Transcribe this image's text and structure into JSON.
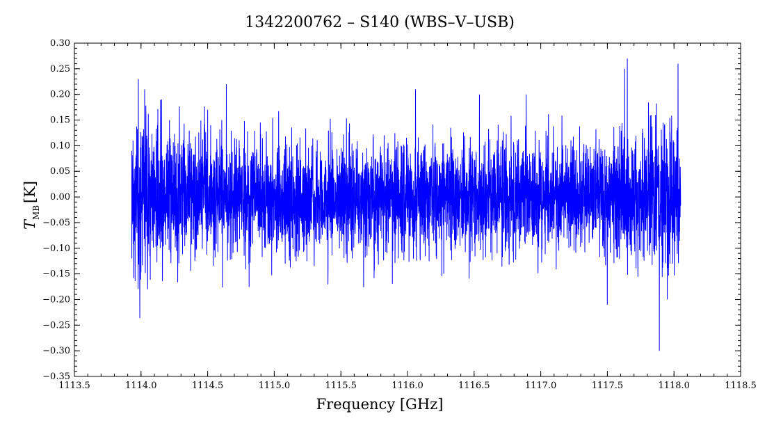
{
  "chart_data": {
    "type": "line",
    "title": "1342200762 – S140 (WBS–V–USB)",
    "xlabel": "Frequency [GHz]",
    "ylabel_main": "T",
    "ylabel_sub": "MB",
    "ylabel_unit": "[K]",
    "xlim": [
      1113.5,
      1118.5
    ],
    "ylim": [
      -0.35,
      0.3
    ],
    "x_ticks": [
      1113.5,
      1114.0,
      1114.5,
      1115.0,
      1115.5,
      1116.0,
      1116.5,
      1117.0,
      1117.5,
      1118.0,
      1118.5
    ],
    "x_tick_labels": [
      "1113.5",
      "1114.0",
      "1114.5",
      "1115.0",
      "1115.5",
      "1116.0",
      "1116.5",
      "1117.0",
      "1117.5",
      "1118.0",
      "1118.5"
    ],
    "y_ticks": [
      0.3,
      0.25,
      0.2,
      0.15,
      0.1,
      0.05,
      0.0,
      -0.05,
      -0.1,
      -0.15,
      -0.2,
      -0.25,
      -0.3,
      -0.35
    ],
    "y_tick_labels": [
      "0.30",
      "0.25",
      "0.20",
      "0.15",
      "0.10",
      "0.05",
      "0.00",
      "−0.05",
      "−0.10",
      "−0.15",
      "−0.20",
      "−0.25",
      "−0.30",
      "−0.35"
    ],
    "grid": false,
    "legend": "none",
    "series": [
      {
        "color": "#0000ff",
        "x_start": 1113.93,
        "x_end": 1118.05,
        "noise_rms_k": 0.055,
        "points": [
          [
            1113.93,
            -0.21
          ],
          [
            1113.93,
            0.09
          ],
          [
            1113.98,
            0.23
          ],
          [
            1113.99,
            -0.17
          ],
          [
            1114.05,
            -0.18
          ],
          [
            1114.5,
            -0.2
          ],
          [
            1114.5,
            0.17
          ],
          [
            1114.64,
            0.22
          ],
          [
            1115.82,
            0.03
          ],
          [
            1116.06,
            0.21
          ],
          [
            1116.54,
            0.2
          ],
          [
            1116.89,
            0.2
          ],
          [
            1117.5,
            -0.21
          ],
          [
            1117.63,
            0.25
          ],
          [
            1117.65,
            0.27
          ],
          [
            1117.89,
            -0.3
          ],
          [
            1117.95,
            -0.2
          ],
          [
            1118.03,
            0.26
          ]
        ]
      }
    ]
  },
  "colors": {
    "series": "#0000ff",
    "axes": "#000000",
    "background": "#ffffff"
  }
}
